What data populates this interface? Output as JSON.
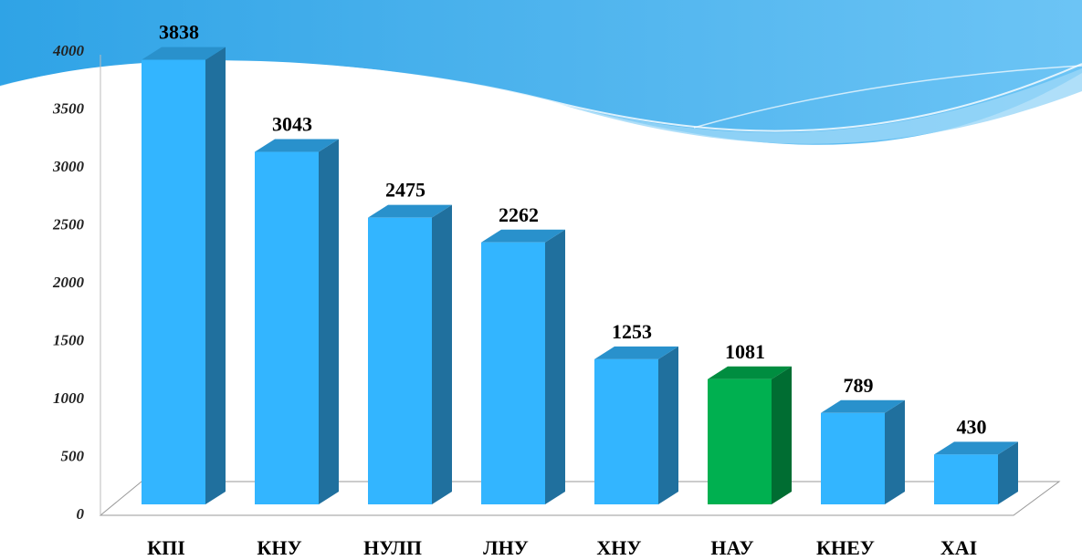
{
  "chart_data": {
    "type": "bar3d",
    "categories": [
      "КПІ",
      "КНУ",
      "НУЛП",
      "ЛНУ",
      "ХНУ",
      "НАУ",
      "КНЕУ",
      "ХАІ"
    ],
    "values": [
      3838,
      3043,
      2475,
      2262,
      1253,
      1081,
      789,
      430
    ],
    "colors": [
      "#33b5ff",
      "#33b5ff",
      "#33b5ff",
      "#33b5ff",
      "#33b5ff",
      "#00b050",
      "#33b5ff",
      "#33b5ff"
    ],
    "ylim": [
      0,
      4000
    ],
    "yticks": [
      0,
      500,
      1000,
      1500,
      2000,
      2500,
      3000,
      3500,
      4000
    ]
  }
}
